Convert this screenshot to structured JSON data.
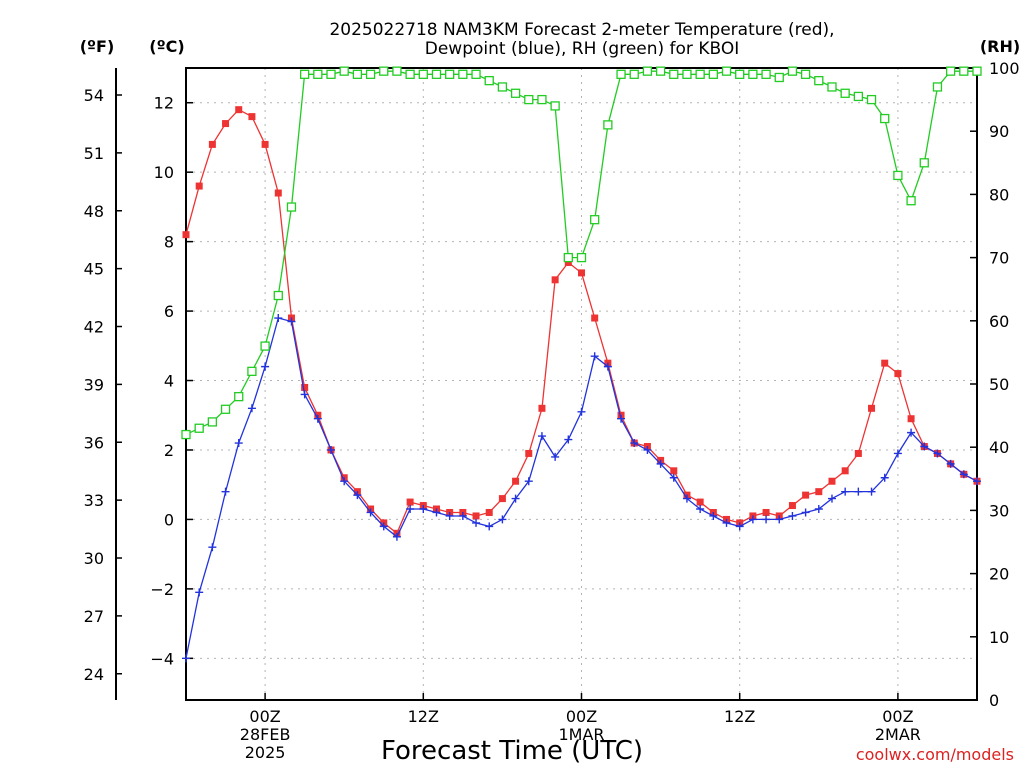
{
  "page": {
    "title_line1": "2025022718 NAM3KM Forecast 2-meter Temperature (red),",
    "title_line2": "Dewpoint (blue), RH (green) for KBOI",
    "credit": "coolwx.com/models"
  },
  "chart_data": {
    "type": "line",
    "title": "2025022718 NAM3KM Forecast 2-meter Temperature (red), Dewpoint (blue), RH (green) for KBOI",
    "xlabel": "Forecast Time (UTC)",
    "units": {
      "left_outer": "(ºF)",
      "left_inner": "(ºC)",
      "right": "(RH)"
    },
    "x_hours_from_start": {
      "min": 0,
      "max": 60,
      "step": 1
    },
    "x_ticks": [
      {
        "hour": 6,
        "lines": [
          "00Z",
          "28FEB",
          "2025"
        ]
      },
      {
        "hour": 18,
        "lines": [
          "12Z"
        ]
      },
      {
        "hour": 30,
        "lines": [
          "00Z",
          "1MAR"
        ]
      },
      {
        "hour": 42,
        "lines": [
          "12Z"
        ]
      },
      {
        "hour": 54,
        "lines": [
          "00Z",
          "2MAR"
        ]
      }
    ],
    "celsius_axis": {
      "ylim": [
        -5.2,
        13.0
      ],
      "ticks": [
        -4,
        -2,
        0,
        2,
        4,
        6,
        8,
        10,
        12
      ]
    },
    "fahrenheit_axis": {
      "ticks": [
        24,
        27,
        30,
        33,
        36,
        39,
        42,
        45,
        48,
        51,
        54
      ]
    },
    "rh_axis": {
      "ylim": [
        0,
        100
      ],
      "ticks": [
        0,
        10,
        20,
        30,
        40,
        50,
        60,
        70,
        80,
        90,
        100
      ]
    },
    "grid": true,
    "series": [
      {
        "axis": "celsius",
        "color": "#ee3333",
        "marker": "filled-square",
        "values": [
          8.2,
          9.6,
          10.8,
          11.4,
          11.8,
          11.6,
          10.8,
          9.4,
          5.8,
          3.8,
          3.0,
          2.0,
          1.2,
          0.8,
          0.3,
          -0.1,
          -0.4,
          0.5,
          0.4,
          0.3,
          0.2,
          0.2,
          0.1,
          0.2,
          0.6,
          1.1,
          1.9,
          3.2,
          6.9,
          7.4,
          7.1,
          5.8,
          4.5,
          3.0,
          2.2,
          2.1,
          1.7,
          1.4,
          0.7,
          0.5,
          0.2,
          0.0,
          -0.1,
          0.1,
          0.2,
          0.1,
          0.4,
          0.7,
          0.8,
          1.1,
          1.4,
          1.9,
          3.2,
          4.5,
          4.2,
          2.9,
          2.1,
          1.9,
          1.6,
          1.3,
          1.1
        ]
      },
      {
        "axis": "celsius",
        "color": "#2233dd",
        "marker": "plus",
        "values": [
          -4.0,
          -2.1,
          -0.8,
          0.8,
          2.2,
          3.2,
          4.4,
          5.8,
          5.7,
          3.6,
          2.9,
          2.0,
          1.1,
          0.7,
          0.2,
          -0.2,
          -0.5,
          0.3,
          0.3,
          0.2,
          0.1,
          0.1,
          -0.1,
          -0.2,
          0.0,
          0.6,
          1.1,
          2.4,
          1.8,
          2.3,
          3.1,
          4.7,
          4.4,
          2.9,
          2.2,
          2.0,
          1.6,
          1.2,
          0.6,
          0.3,
          0.1,
          -0.1,
          -0.2,
          0.0,
          0.0,
          0.0,
          0.1,
          0.2,
          0.3,
          0.6,
          0.8,
          0.8,
          0.8,
          1.2,
          1.9,
          2.5,
          2.1,
          1.9,
          1.6,
          1.3,
          1.1
        ]
      },
      {
        "axis": "rh",
        "color": "#22cc22",
        "marker": "open-square",
        "values": [
          42,
          43,
          44,
          46,
          48,
          52,
          56,
          64,
          78,
          99,
          99,
          99,
          99.5,
          99,
          99,
          99.5,
          99.5,
          99,
          99,
          99,
          99,
          99,
          99,
          98,
          97,
          96,
          95,
          95,
          94,
          70,
          70,
          76,
          91,
          99,
          99,
          99.5,
          99.5,
          99,
          99,
          99,
          99,
          99.5,
          99,
          99,
          99,
          98.5,
          99.5,
          99,
          98,
          97,
          96,
          95.5,
          95,
          92,
          83,
          79,
          85,
          97,
          99.5,
          99.5,
          99.5
        ]
      }
    ]
  }
}
